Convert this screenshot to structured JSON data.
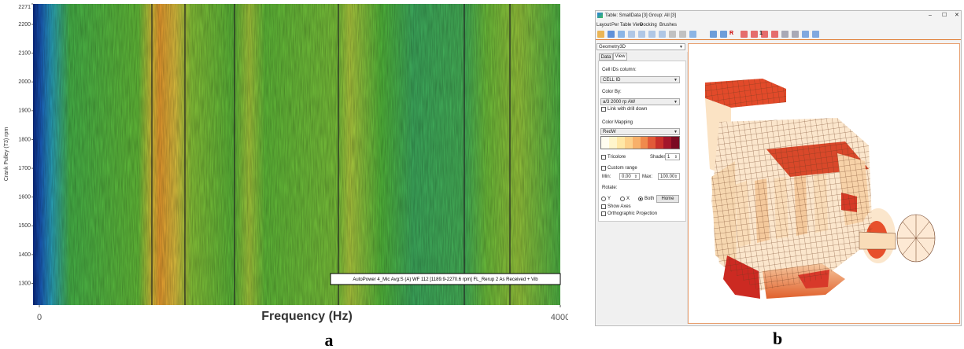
{
  "chart_data": {
    "type": "heatmap",
    "ylabel": "Crank Pulley (T3) rpm",
    "xlabel": "Frequency (Hz)",
    "annotation": "AutoPower 4_Mic Avg:S (A) WF 112 [1189.9-2270.6 rpm]  FL_Rerup 2  As Received + Vib",
    "ylim": [
      1225,
      2271
    ],
    "yticks": [
      1300,
      1400,
      1500,
      1600,
      1700,
      1800,
      1900,
      2000,
      2100,
      2200,
      2271
    ],
    "xlim": [
      0,
      4000
    ],
    "xticks": [
      0,
      4000
    ],
    "panel_label": "a"
  },
  "window": {
    "title": "Table: SmallData [3] Group: All [3]",
    "menu": [
      "Layout",
      "Per Table View",
      "Docking",
      "Brushes"
    ],
    "toolbar_text": [
      "R",
      "1"
    ],
    "view_selector": "Geometry3D",
    "tabs": [
      "Data",
      "View"
    ],
    "cell_ids_label": "Cell IDs column:",
    "cell_ids_value": "CELL ID",
    "color_by_label": "Color By:",
    "color_by_value": "a/3 2000 rp AW",
    "link_drill_down": "Link with drill down",
    "color_mapping_label": "Color Mapping",
    "color_mapping_value": "RedW",
    "tricolore": "Tricolore",
    "shades_label": "Shades:",
    "shades_value": "1",
    "custom_range": "Custom range",
    "min_label": "Min:",
    "min_value": "0.00",
    "max_label": "Max:",
    "max_value": "100.00",
    "rotate_label": "Rotate:",
    "rotate_options": [
      "Y",
      "X",
      "Both"
    ],
    "home_button": "Home",
    "show_axes": "Show Axes",
    "orthographic": "Orthographic Projection",
    "panel_label": "b"
  }
}
